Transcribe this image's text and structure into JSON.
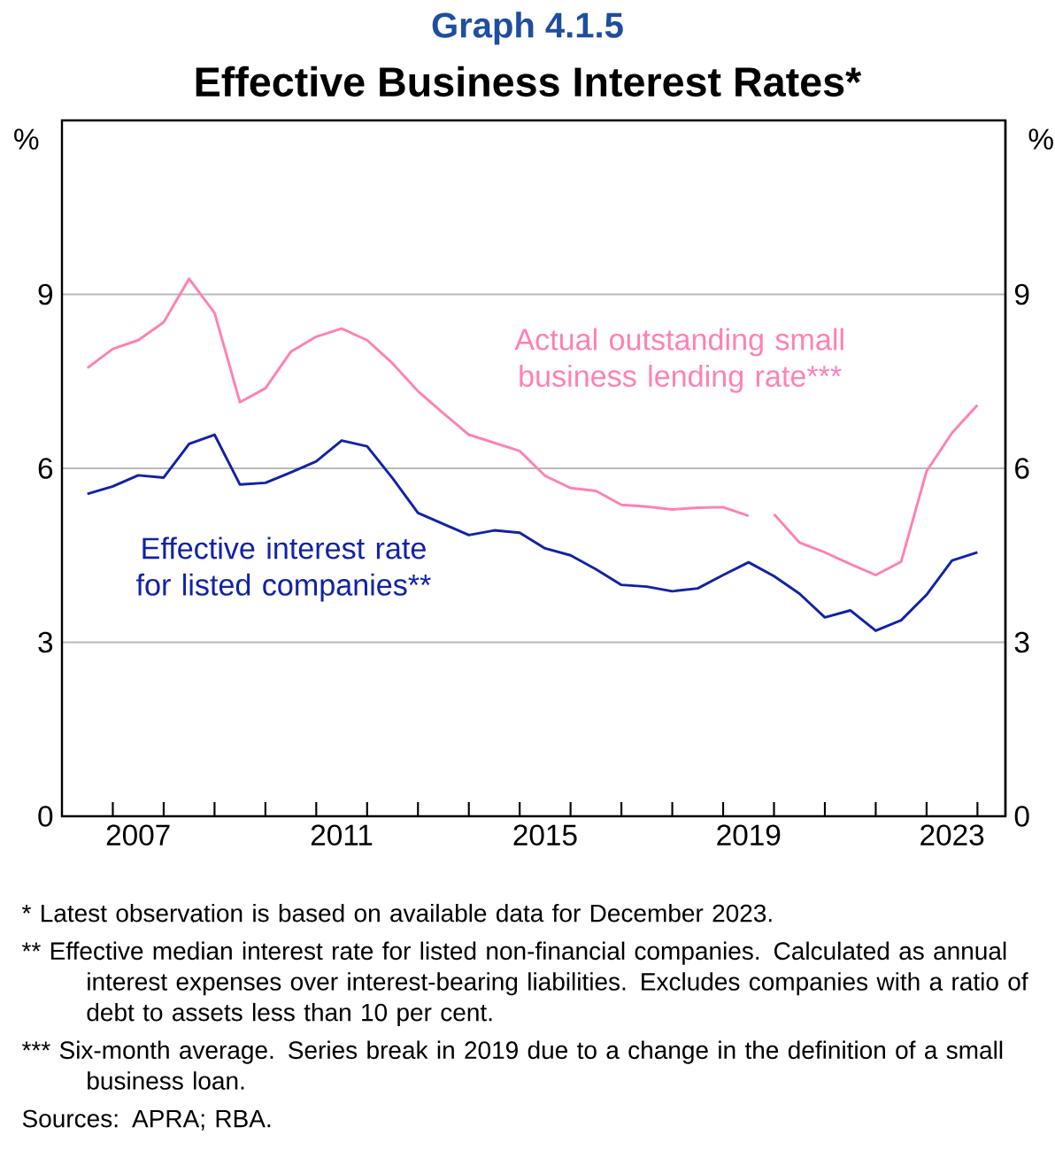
{
  "chart_data": {
    "type": "line",
    "subtitle": "Graph 4.1.5",
    "title": "Effective Business Interest Rates*",
    "ylabel": "%",
    "y2label": "%",
    "x": [
      2006.5,
      2007.0,
      2007.5,
      2008.0,
      2008.5,
      2009.0,
      2009.5,
      2010.0,
      2010.5,
      2011.0,
      2011.5,
      2012.0,
      2012.5,
      2013.0,
      2013.5,
      2014.0,
      2014.5,
      2015.0,
      2015.5,
      2016.0,
      2016.5,
      2017.0,
      2017.5,
      2018.0,
      2018.5,
      2019.0,
      2019.5,
      2020.0,
      2020.5,
      2021.0,
      2021.5,
      2022.0,
      2022.5,
      2023.0,
      2023.5,
      2024.0
    ],
    "series": [
      {
        "name": "Effective interest rate for listed companies**",
        "color": "#1122a8",
        "values": [
          5.56,
          5.69,
          5.88,
          5.84,
          6.42,
          6.58,
          5.72,
          5.75,
          5.93,
          6.12,
          6.48,
          6.38,
          5.83,
          5.23,
          5.04,
          4.85,
          4.93,
          4.89,
          4.62,
          4.5,
          4.26,
          3.99,
          3.96,
          3.88,
          3.93,
          4.16,
          4.38,
          4.14,
          3.84,
          3.43,
          3.55,
          3.2,
          3.38,
          3.82,
          4.41,
          4.55
        ]
      },
      {
        "name": "Actual outstanding small business lending rate***",
        "color": "#ff80b5",
        "x": [
          2006.5,
          2007.0,
          2007.5,
          2008.0,
          2008.5,
          2009.0,
          2009.5,
          2010.0,
          2010.5,
          2011.0,
          2011.5,
          2012.0,
          2012.5,
          2013.0,
          2013.5,
          2014.0,
          2014.5,
          2015.0,
          2015.5,
          2016.0,
          2016.5,
          2017.0,
          2017.5,
          2018.0,
          2018.5,
          2019.0,
          2019.5
        ],
        "values": [
          7.73,
          8.06,
          8.21,
          8.52,
          9.27,
          8.68,
          7.14,
          7.38,
          8.01,
          8.27,
          8.41,
          8.21,
          7.81,
          7.33,
          6.95,
          6.58,
          6.44,
          6.3,
          5.87,
          5.66,
          5.61,
          5.37,
          5.34,
          5.29,
          5.32,
          5.33,
          5.18
        ]
      },
      {
        "color": "#ff80b5",
        "x": [
          2020.0,
          2020.5,
          2021.0,
          2021.5,
          2022.0,
          2022.5,
          2023.0,
          2023.5,
          2024.0
        ],
        "values": [
          5.21,
          4.72,
          4.55,
          4.35,
          4.16,
          4.39,
          5.95,
          6.61,
          7.09
        ]
      }
    ],
    "xlim": [
      2006.0,
      2024.55
    ],
    "ylim": [
      0,
      12
    ],
    "y2lim": [
      0,
      12
    ],
    "xticks": [
      {
        "value": 2007.5,
        "label": "2007"
      },
      {
        "value": 2011.5,
        "label": "2011"
      },
      {
        "value": 2015.5,
        "label": "2015"
      },
      {
        "value": 2019.5,
        "label": "2019"
      },
      {
        "value": 2023.5,
        "label": "2023"
      },
      {
        "value": 2007,
        "label": null
      },
      {
        "value": 2008,
        "label": null
      },
      {
        "value": 2009,
        "label": null
      },
      {
        "value": 2010,
        "label": null
      },
      {
        "value": 2011,
        "label": null
      },
      {
        "value": 2012,
        "label": null
      },
      {
        "value": 2013,
        "label": null
      },
      {
        "value": 2014,
        "label": null
      },
      {
        "value": 2015,
        "label": null
      },
      {
        "value": 2016,
        "label": null
      },
      {
        "value": 2017,
        "label": null
      },
      {
        "value": 2018,
        "label": null
      },
      {
        "value": 2019,
        "label": null
      },
      {
        "value": 2020,
        "label": null
      },
      {
        "value": 2021,
        "label": null
      },
      {
        "value": 2022,
        "label": null
      },
      {
        "value": 2023,
        "label": null
      },
      {
        "value": 2024,
        "label": null
      }
    ],
    "yticks": [
      0,
      3,
      6,
      9
    ],
    "y2ticks": [
      0,
      3,
      6,
      9
    ],
    "grid": "y",
    "annotations": [
      "* Latest observation is based on available data for December 2023.",
      "** Effective median interest rate for listed non-financial companies. Calculated as annual interest expenses over interest-bearing liabilities. Excludes companies with a ratio of debt to assets less than 10 per cent.",
      "*** Six-month average. Series break in 2019 due to a change in the definition of a small business loan.",
      "Sources: APRA; RBA."
    ]
  }
}
